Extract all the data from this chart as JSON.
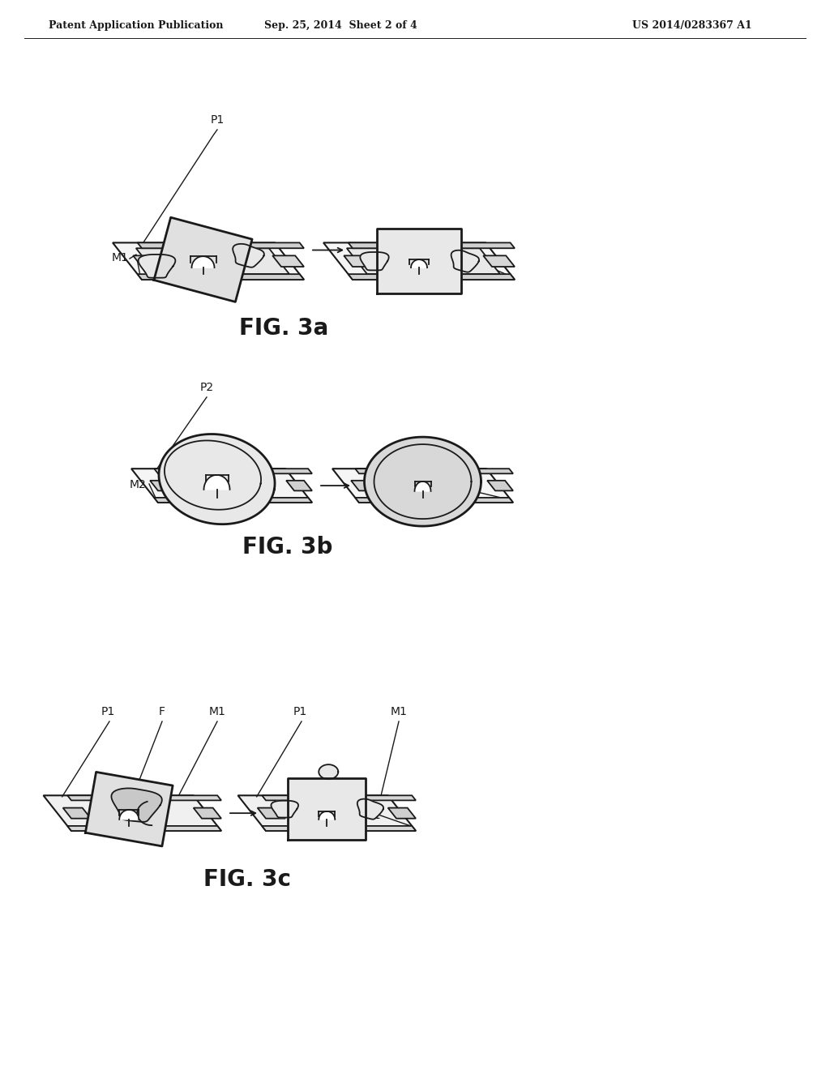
{
  "bg_color": "#ffffff",
  "line_color": "#1a1a1a",
  "header_left": "Patent Application Publication",
  "header_center": "Sep. 25, 2014  Sheet 2 of 4",
  "header_right": "US 2014/0283367 A1",
  "fig3a_label": "FIG. 3a",
  "fig3b_label": "FIG. 3b",
  "fig3c_label": "FIG. 3c",
  "lw_thin": 1.3,
  "lw_thick": 2.0,
  "lw_border": 1.5
}
